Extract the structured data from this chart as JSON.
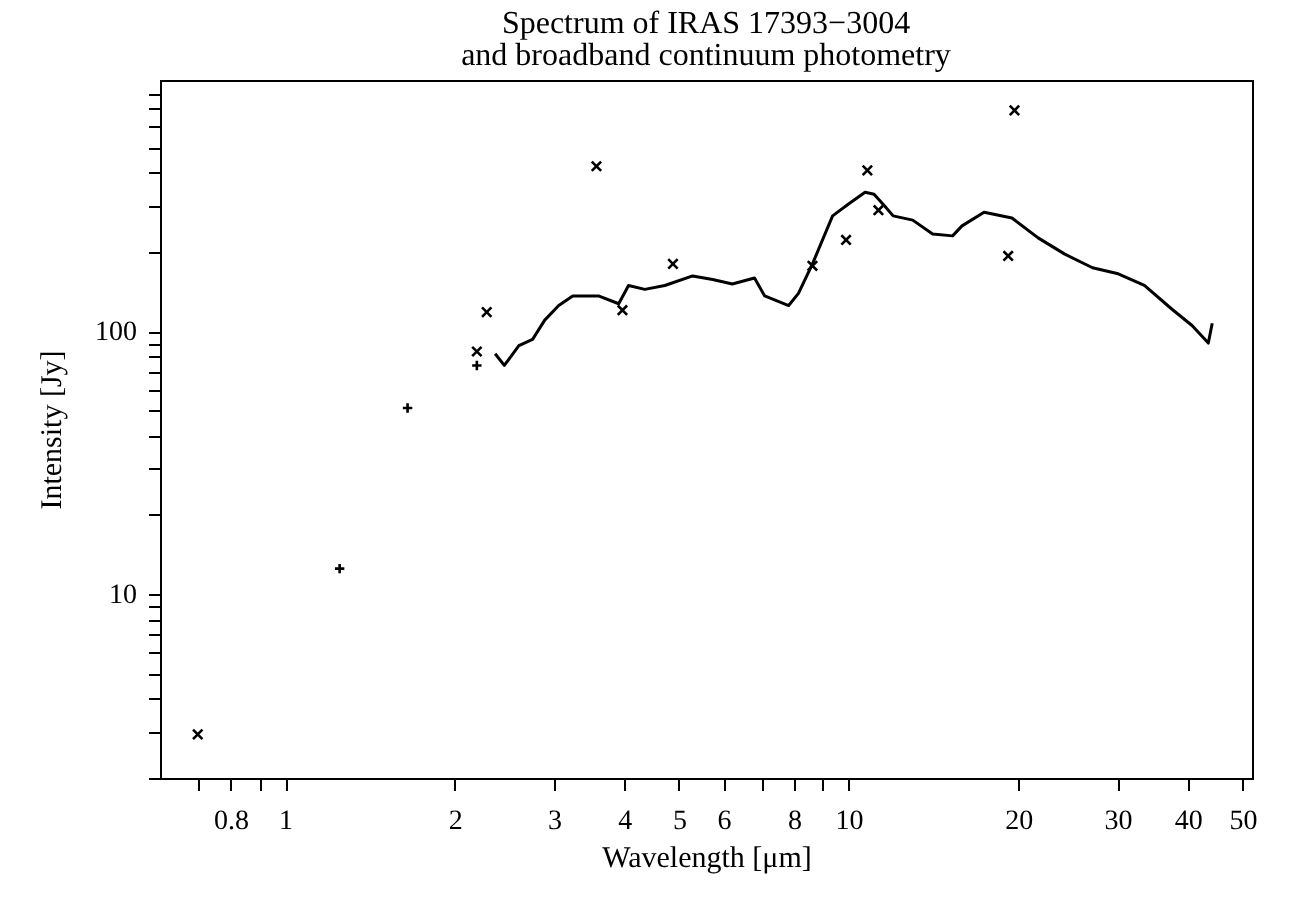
{
  "chart_data": {
    "type": "line",
    "title": "Spectrum of IRAS 17393−3004",
    "subtitle": "and broadband continuum photometry",
    "xlabel": "Wavelength [μm]",
    "ylabel": "Intensity [Jy]",
    "log": "xy",
    "grid": false,
    "xlim": [
      0.6,
      52
    ],
    "ylim": [
      2,
      900
    ],
    "xticks": [
      {
        "value": 0.7,
        "label": null
      },
      0.8,
      {
        "value": 0.9,
        "label": null
      },
      1,
      2,
      3,
      4,
      5,
      6,
      {
        "value": 7,
        "label": null
      },
      8,
      {
        "value": 9,
        "label": null
      },
      10,
      20,
      30,
      40,
      50
    ],
    "yticks": [
      {
        "value": 2,
        "label": null
      },
      {
        "value": 3,
        "label": null
      },
      {
        "value": 4,
        "label": null
      },
      {
        "value": 5,
        "label": null
      },
      {
        "value": 6,
        "label": null
      },
      {
        "value": 7,
        "label": null
      },
      {
        "value": 8,
        "label": null
      },
      {
        "value": 9,
        "label": null
      },
      10,
      {
        "value": 20,
        "label": null
      },
      {
        "value": 30,
        "label": null
      },
      {
        "value": 40,
        "label": null
      },
      {
        "value": 50,
        "label": null
      },
      {
        "value": 60,
        "label": null
      },
      {
        "value": 70,
        "label": null
      },
      {
        "value": 80,
        "label": null
      },
      {
        "value": 90,
        "label": null
      },
      100,
      {
        "value": 200,
        "label": null
      },
      {
        "value": 300,
        "label": null
      },
      {
        "value": 400,
        "label": null
      },
      {
        "value": 500,
        "label": null
      },
      {
        "value": 600,
        "label": null
      },
      {
        "value": 700,
        "label": null
      },
      {
        "value": 800,
        "label": null
      }
    ],
    "series": [
      {
        "color": "#000000",
        "marker": "none",
        "line_style": "solid",
        "x": [
          2.36,
          2.45,
          2.6,
          2.75,
          2.89,
          3.06,
          3.24,
          3.6,
          3.91,
          4.07,
          4.35,
          4.72,
          5.29,
          5.74,
          6.22,
          6.81,
          7.1,
          7.83,
          8.15,
          8.63,
          9.37,
          10.0,
          10.7,
          11.1,
          11.6,
          12.0,
          13.0,
          14.1,
          15.3,
          15.9,
          17.4,
          19.5,
          21.7,
          24.2,
          27.1,
          30.1,
          33.5,
          37.5,
          40.7,
          43.5,
          44.2
        ],
        "values": [
          82,
          74,
          88,
          93,
          110,
          125,
          136,
          136,
          127,
          149,
          144,
          149,
          162,
          157,
          151,
          159,
          136,
          125,
          139,
          180,
          274,
          304,
          337,
          331,
          298,
          274,
          264,
          234,
          230,
          251,
          283,
          269,
          226,
          196,
          174,
          165,
          149,
          121,
          105,
          90,
          107
        ]
      },
      {
        "type": "scatter",
        "color": "#000000",
        "marker": "x",
        "x": [
          0.7,
          2.28,
          2.19,
          3.57,
          3.97,
          4.88,
          8.63,
          9.9,
          10.8,
          11.3,
          19.7,
          19.2
        ],
        "values": [
          2.93,
          118,
          83.6,
          423,
          120,
          180,
          177,
          222,
          408,
          288,
          690,
          193
        ]
      },
      {
        "type": "scatter",
        "color": "#000000",
        "marker": "cross",
        "x": [
          2.19,
          1.65,
          1.25
        ],
        "values": [
          74,
          51,
          12.5
        ]
      }
    ]
  }
}
